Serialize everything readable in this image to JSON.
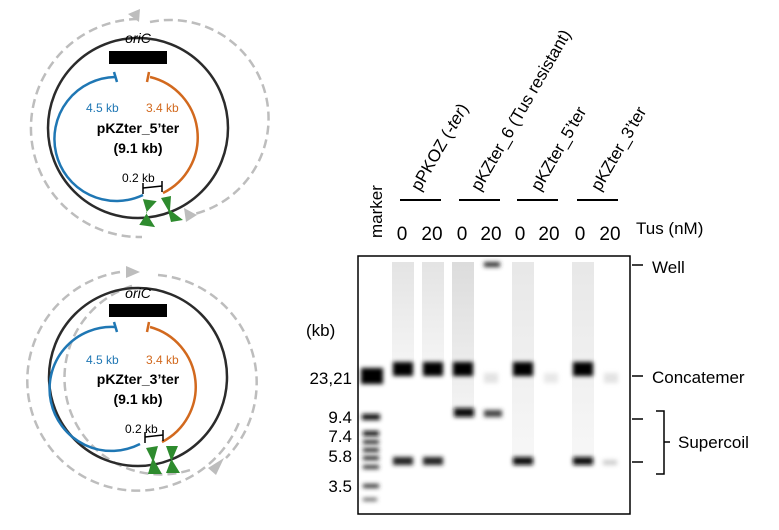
{
  "plasmid_top": {
    "origin_label": "oriC",
    "left_arc_label": "4.5 kb",
    "right_arc_label": "3.4 kb",
    "name": "pKZter_5’ter",
    "size": "(9.1 kb)",
    "gap_label": "0.2 kb"
  },
  "plasmid_bottom": {
    "origin_label": "oriC",
    "left_arc_label": "4.5 kb",
    "right_arc_label": "3.4 kb",
    "name": "pKZter_3’ter",
    "size": "(9.1 kb)",
    "gap_label": "0.2 kb"
  },
  "gel": {
    "marker_label": "marker",
    "groups": [
      {
        "name_prefix": "pPKOZ (",
        "name_italic": "-ter",
        "name_suffix": ")"
      },
      {
        "name_prefix": "pKZter_6 (Tus resistant)",
        "name_italic": "",
        "name_suffix": ""
      },
      {
        "name_prefix": "pKZter_5’ter",
        "name_italic": "",
        "name_suffix": ""
      },
      {
        "name_prefix": "pKZter_3’ter",
        "name_italic": "",
        "name_suffix": ""
      }
    ],
    "concentrations": [
      "0",
      "20",
      "0",
      "20",
      "0",
      "20",
      "0",
      "20"
    ],
    "tus_label": "Tus (nM)",
    "size_unit": "(kb)",
    "size_markers": [
      "23,21",
      "9.4",
      "7.4",
      "5.8",
      "3.5"
    ],
    "right_labels": {
      "well": "Well",
      "concatemer": "Concatemer",
      "supercoil": "Supercoil"
    }
  },
  "colors": {
    "blue_arc": "#1f77b4",
    "orange_arc": "#d2691e",
    "green_marker": "#2e8b2e",
    "dashed_arrow": "#bdbdbd"
  }
}
